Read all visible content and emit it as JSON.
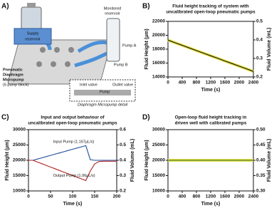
{
  "diagram": {
    "panel": "A)",
    "supply": [
      "Supply",
      "reservoir"
    ],
    "monitored": [
      "Monitored",
      "reservoir"
    ],
    "pump_a": "Pump A",
    "pump_b": "Pump B",
    "micropump": [
      "Pneumatic",
      "Diaphragm",
      "Micropump",
      "(6 pump block)"
    ],
    "inlet": "Inlet valve",
    "pump": "Pump",
    "outlet": "Outlet valve",
    "detail": "Diaphragm Micropump detail"
  },
  "chart_data": [
    {
      "type": "line",
      "panel": "B)",
      "title": [
        "Fluid height tracking of system with",
        "uncalibrated open-loop pneumatic pumps"
      ],
      "x_label": "Time (s)",
      "y_label": "Fluid Height (µm)",
      "y2_label": "Fluid Volume (mL)",
      "x": [
        0,
        200,
        400,
        600,
        800,
        1000,
        1200,
        1400,
        1600,
        1800,
        2000,
        2200,
        2400
      ],
      "series": [
        {
          "color": "#111111",
          "band": "#e6e04a",
          "values": [
            19300,
            18925,
            18550,
            18175,
            17800,
            17425,
            17050,
            16675,
            16300,
            15925,
            15550,
            15175,
            14800
          ]
        }
      ],
      "xlim": [
        0,
        2400
      ],
      "xticks": [
        0,
        400,
        800,
        1200,
        1600,
        2000,
        2400
      ],
      "ylim": [
        14000,
        22000
      ],
      "yticks": [
        14000,
        16000,
        18000,
        20000,
        22000
      ],
      "y2lim": [
        0.2,
        0.5
      ],
      "y2ticks": [
        0.2,
        0.3,
        0.4,
        0.5
      ]
    },
    {
      "type": "line",
      "panel": "C)",
      "title": [
        "Input and output behaviour of",
        "uncalibrated open-loop pneumatic pumps"
      ],
      "x_label": "Time (s)",
      "y_label": "Fluid Height (µm)",
      "y2_label": "Fluid Volume (mL)",
      "x": [
        0,
        10,
        20,
        30,
        40,
        50,
        60,
        70,
        80,
        90,
        100,
        110,
        120,
        130,
        140,
        150,
        160,
        170,
        180,
        190,
        200
      ],
      "series": [
        {
          "name": "Input Pump (1.167µL/s)",
          "color": "#1f4e9c",
          "values": [
            20000,
            20000,
            20400,
            20800,
            21200,
            21600,
            22000,
            22400,
            22800,
            23200,
            23600,
            24000,
            24400,
            24800,
            20200,
            20000,
            20000,
            20000,
            20000,
            20000,
            20000
          ]
        },
        {
          "name": "Output Pump (1.06µL/s)",
          "color": "#b22222",
          "values": [
            20000,
            20000,
            19450,
            18900,
            18350,
            17800,
            17250,
            16700,
            16150,
            15600,
            15050,
            14500,
            13950,
            13400,
            16500,
            18800,
            19600,
            19700,
            19700,
            19700,
            19700
          ]
        }
      ],
      "xlim": [
        0,
        200
      ],
      "xticks": [
        0,
        50,
        100,
        150,
        200
      ],
      "ylim": [
        10000,
        30000
      ],
      "yticks": [
        10000,
        15000,
        20000,
        25000,
        30000
      ],
      "y2lim": [
        0.2,
        0.6
      ],
      "y2ticks": [
        0.2,
        0.3,
        0.4,
        0.5,
        0.6
      ]
    },
    {
      "type": "line",
      "panel": "D)",
      "title": [
        "Open-loop fluid height tracking in",
        "driven well with calibrated pumps"
      ],
      "x_label": "Time (s)",
      "y_label": "Fluid Height (µm)",
      "y2_label": "Fluid Volume (mL)",
      "x": [
        0,
        200,
        400,
        600,
        800,
        1000,
        1200,
        1400,
        1600,
        1800,
        2000,
        2200,
        2400
      ],
      "series": [
        {
          "color": "#2e6b2e",
          "band": "#e6e04a",
          "values": [
            20000,
            20000,
            20000,
            20000,
            20000,
            20000,
            20000,
            20000,
            20000,
            20000,
            20000,
            20000,
            20000
          ]
        }
      ],
      "xlim": [
        0,
        2400
      ],
      "xticks": [
        0,
        400,
        800,
        1200,
        1600,
        2000,
        2400
      ],
      "ylim": [
        10000,
        30000
      ],
      "yticks": [
        10000,
        15000,
        20000,
        25000,
        30000
      ],
      "y2lim": [
        0.3,
        0.5
      ],
      "y2ticks": [
        {
          "value": 0.3,
          "label": "0.30"
        },
        0.35,
        {
          "value": 0.4,
          "label": "0.40"
        },
        0.45,
        {
          "value": 0.5,
          "label": "0.50"
        }
      ]
    }
  ]
}
